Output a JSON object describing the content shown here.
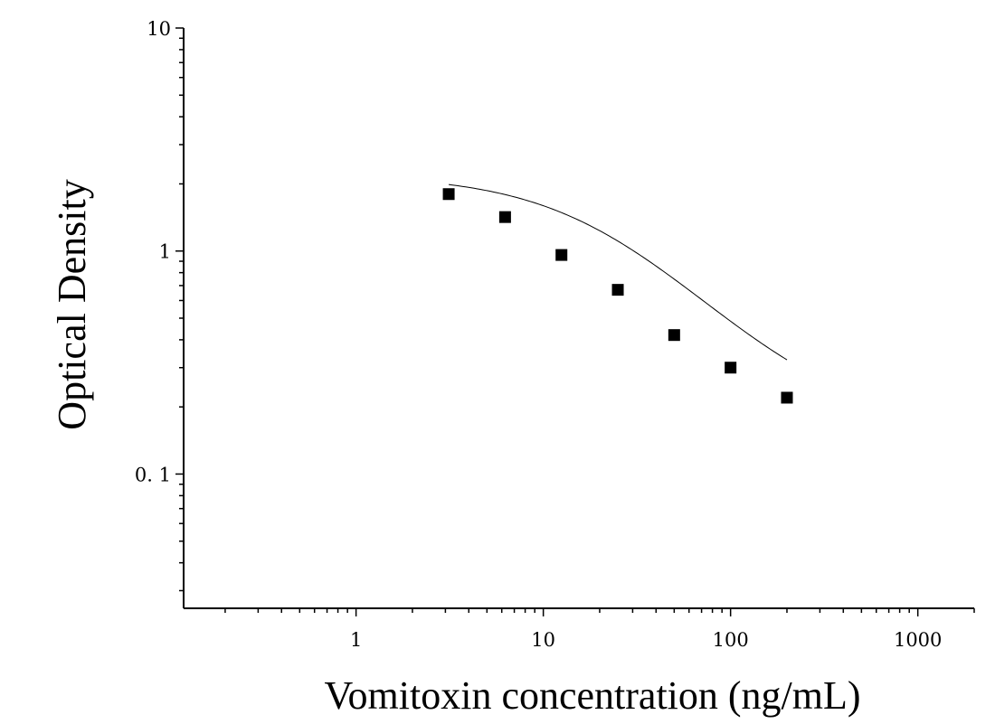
{
  "chart_data": {
    "type": "scatter",
    "title": "",
    "xlabel": "Vomitoxin concentration (ng/mL)",
    "ylabel": "Optical Density",
    "x_scale": "log",
    "y_scale": "log",
    "xlim": [
      0.12,
      2000
    ],
    "ylim": [
      0.025,
      10
    ],
    "x_ticks": [
      1,
      10,
      100,
      1000
    ],
    "x_tick_labels": [
      "1",
      "10",
      "100",
      "1000"
    ],
    "y_ticks": [
      0.1,
      1,
      10
    ],
    "y_tick_labels": [
      "0. 1",
      "1",
      "10"
    ],
    "grid": false,
    "legend": "none",
    "colors": {
      "marker": "#000000",
      "curve": "#000000",
      "axis": "#000000"
    },
    "series": [
      {
        "marker": "square",
        "x": [
          3.125,
          6.25,
          12.5,
          25,
          50,
          100,
          200
        ],
        "y": [
          1.8,
          1.42,
          0.96,
          0.67,
          0.42,
          0.3,
          0.22
        ]
      }
    ],
    "fit_curve": {
      "type": "four-parameter logistic",
      "x_range": [
        3.125,
        200
      ],
      "top": 2.2,
      "bottom": 0.16,
      "ec50": 22,
      "hill": 1.1
    }
  }
}
